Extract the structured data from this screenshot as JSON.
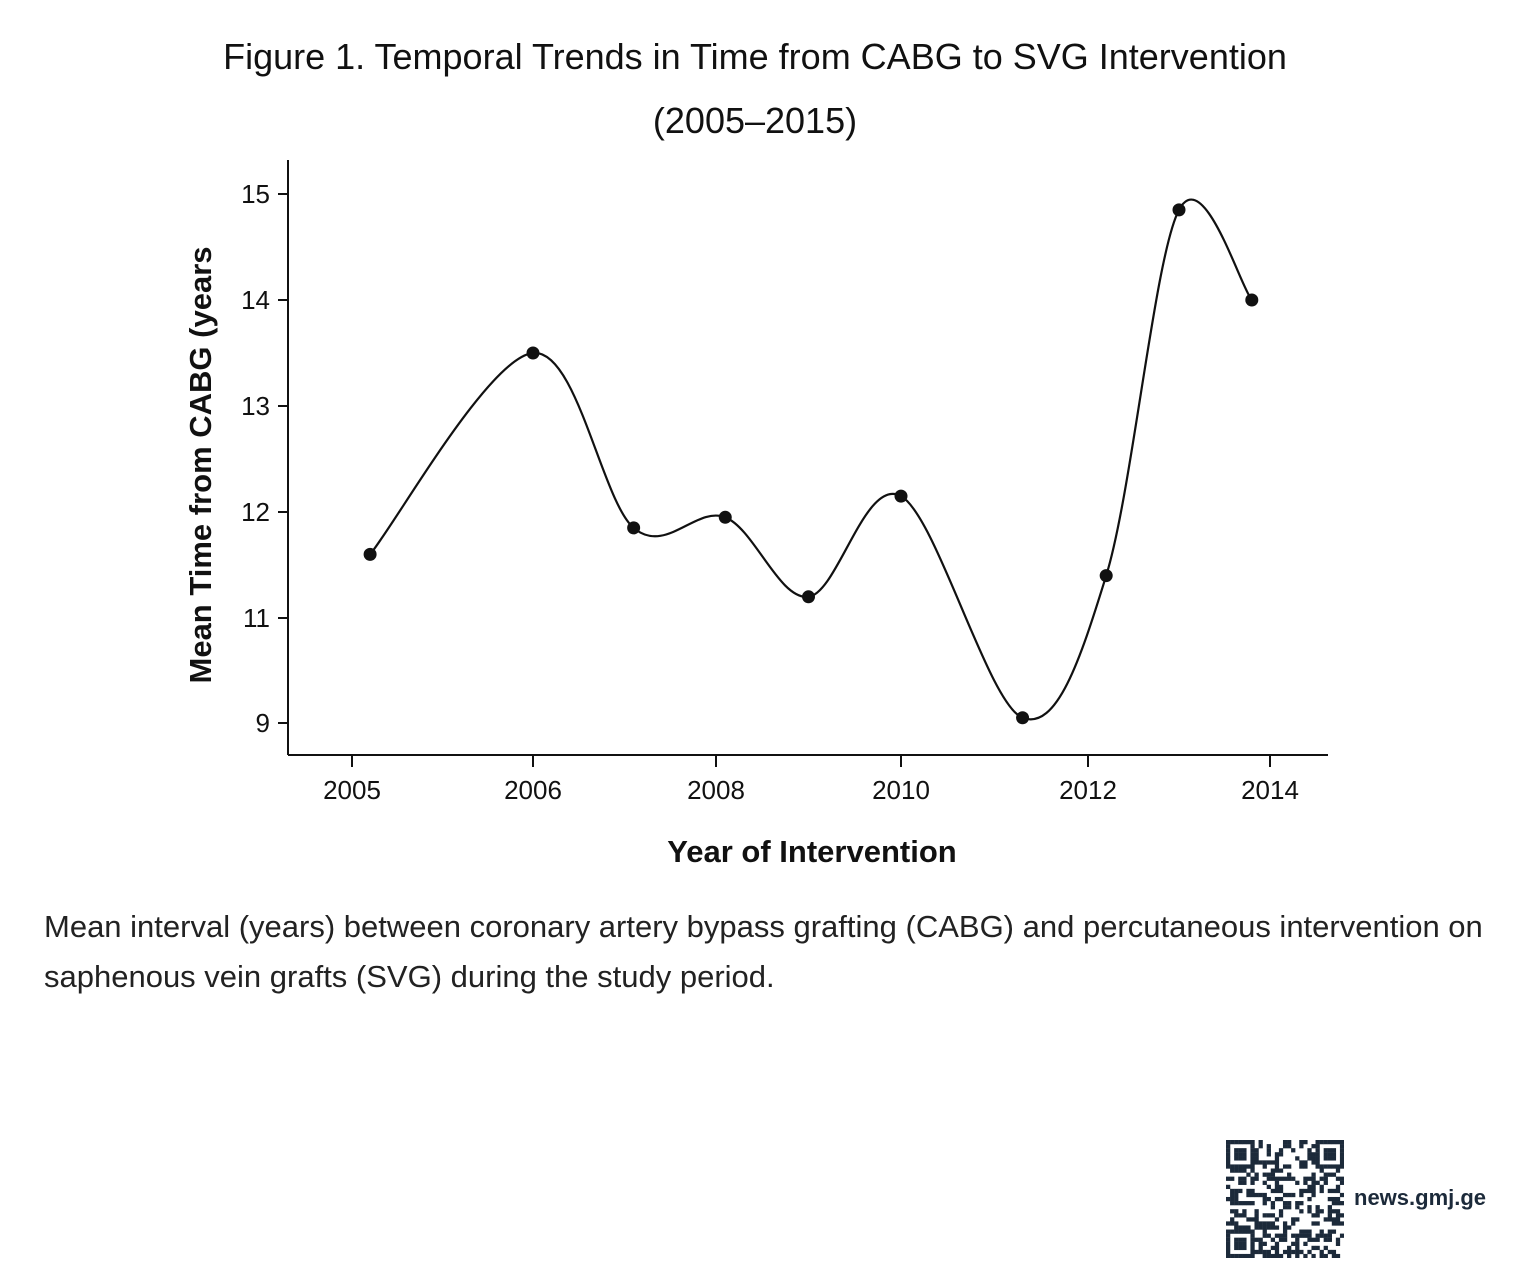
{
  "chart_data": {
    "type": "line",
    "title": "Figure 1. Temporal Trends in Time from CABG to SVG Intervention",
    "subtitle": "(2005–2015)",
    "xlabel": "Year of Intervention",
    "ylabel": "Mean Time from CABG (years",
    "x_ticks": [
      2005,
      2006,
      2008,
      2010,
      2012,
      2014
    ],
    "y_ticks": [
      9,
      11,
      12,
      13,
      14,
      15
    ],
    "grid": false,
    "legend": "none",
    "series": [
      {
        "x": [
          2005.1,
          2006.0,
          2007.1,
          2008.1,
          2009.0,
          2010.0,
          2011.3,
          2012.2,
          2013.0,
          2013.8
        ],
        "y": [
          11.6,
          13.5,
          11.85,
          11.95,
          11.2,
          12.15,
          9.1,
          11.4,
          14.85,
          14.0
        ]
      }
    ],
    "colors": {
      "line": "#111111",
      "marker": "#111111"
    }
  },
  "caption": "Mean interval (years) between coronary artery bypass grafting (CABG) and percutaneous intervention on saphenous vein grafts (SVG) during the study period.",
  "footer": {
    "brand": "news.gmj.ge",
    "qr_icon": "qr-code-icon"
  }
}
